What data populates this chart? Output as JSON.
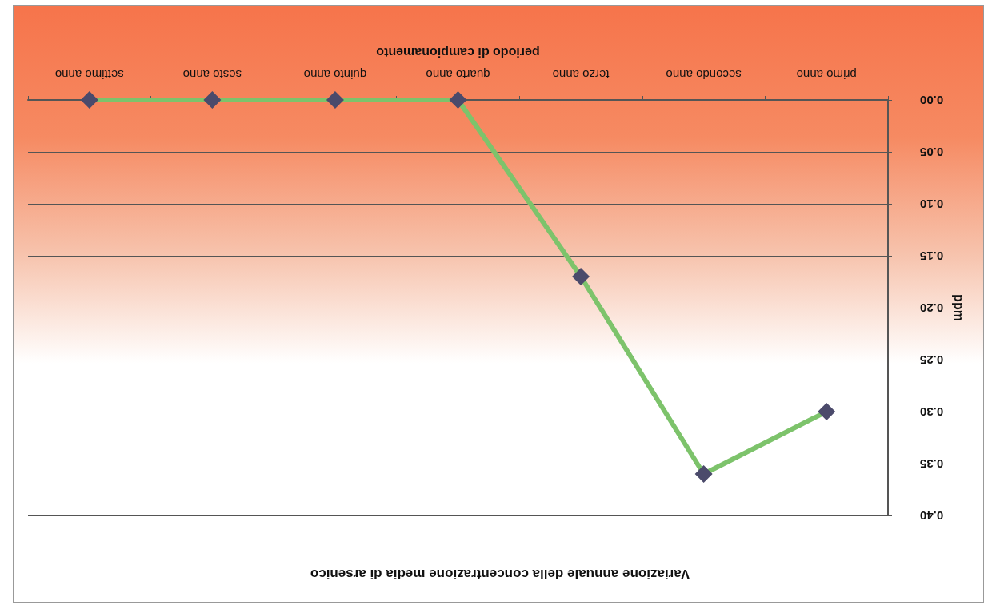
{
  "chart_data": {
    "type": "line",
    "title": "Variazione annuale della concentrazione media di arsenico",
    "xlabel": "periodo di campionamento",
    "ylabel": "ppm",
    "categories": [
      "settimo anno",
      "sesto anno",
      "quinto anno",
      "quarto anno",
      "terzo anno",
      "secondo anno",
      "primo anno"
    ],
    "series": [
      {
        "color": "#7dc36b",
        "values": [
          0.0,
          0.0,
          0.0,
          0.0,
          0.17,
          0.36,
          0.3
        ]
      }
    ],
    "ylim": [
      0.4,
      0
    ],
    "yticks": [
      {
        "value": 0,
        "label": "0.00"
      },
      {
        "value": 0.05,
        "label": "0.05"
      },
      {
        "value": 0.1,
        "label": "0.10"
      },
      {
        "value": 0.15,
        "label": "0.15"
      },
      {
        "value": 0.2,
        "label": "0.20"
      },
      {
        "value": 0.25,
        "label": "0.25"
      },
      {
        "value": 0.3,
        "label": "0.30"
      },
      {
        "value": 0.35,
        "label": "0.35"
      },
      {
        "value": 0.4,
        "label": "0.40"
      }
    ],
    "grid": "y",
    "marker": "diamond",
    "line_style": "solid"
  }
}
